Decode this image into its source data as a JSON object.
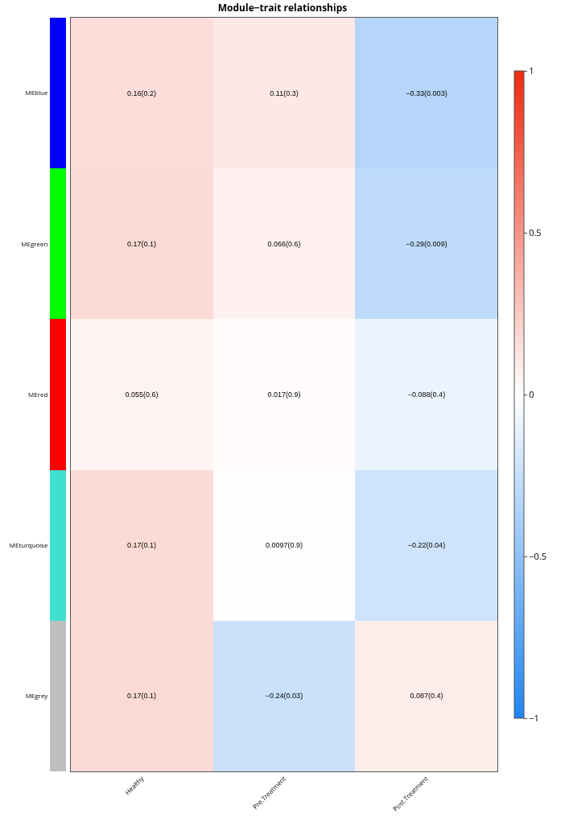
{
  "chart_data": {
    "type": "heatmap",
    "title": "Module−trait relationships",
    "categories": [
      "Healthy",
      "Pre.Treatment",
      "Post.Treatment"
    ],
    "y_categories": [
      "MEblue",
      "MEgreen",
      "MEred",
      "MEturquoise",
      "MEgrey"
    ],
    "colors": [
      "#0000ff",
      "#00ff00",
      "#ff0000",
      "#40e0d0",
      "#bebebe"
    ],
    "cells": [
      [
        0.16,
        0.11,
        -0.33
      ],
      [
        0.17,
        0.066,
        -0.29
      ],
      [
        0.055,
        0.017,
        -0.088
      ],
      [
        0.17,
        0.0097,
        -0.22
      ],
      [
        0.17,
        -0.24,
        0.087
      ]
    ],
    "cell_labels": [
      [
        "0.16(0.2)",
        "0.11(0.3)",
        "−0.33(0.003)"
      ],
      [
        "0.17(0.1)",
        "0.066(0.6)",
        "−0.29(0.009)"
      ],
      [
        "0.055(0.6)",
        "0.017(0.9)",
        "−0.088(0.4)"
      ],
      [
        "0.17(0.1)",
        "0.0097(0.9)",
        "−0.22(0.04)"
      ],
      [
        "0.17(0.1)",
        "−0.24(0.03)",
        "0.087(0.4)"
      ]
    ],
    "clim": [
      -1,
      1
    ],
    "cticks": [
      {
        "value": -1,
        "label": "−1"
      },
      {
        "value": -0.5,
        "label": "−0.5"
      },
      {
        "value": 0,
        "label": "0"
      },
      {
        "value": 0.5,
        "label": "0.5"
      },
      {
        "value": 1,
        "label": "1"
      }
    ]
  }
}
